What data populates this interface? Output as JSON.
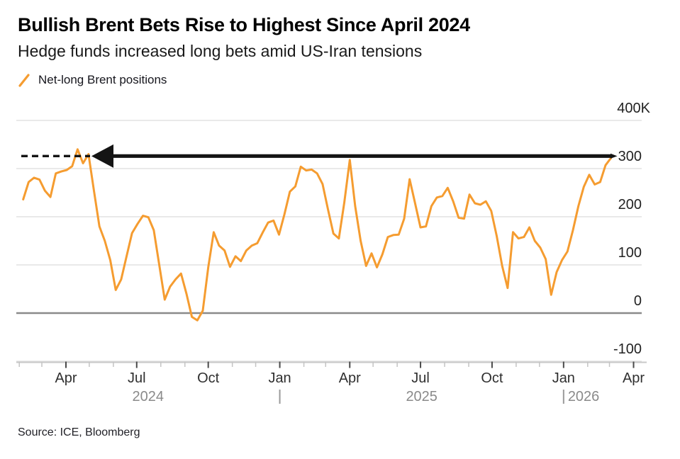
{
  "header": {
    "title": "Bullish Brent Bets Rise to Highest Since April 2024",
    "subtitle": "Hedge funds increased long bets amid US-Iran tensions"
  },
  "legend": {
    "label": "Net-long Brent positions",
    "swatch_color": "#F59C30",
    "swatch_icon": "orange-slash-icon"
  },
  "footer": {
    "source": "Source: ICE, Bloomberg"
  },
  "colors": {
    "accent_orange": "#F59C30",
    "gridline": "#E2E2E2",
    "zero_line": "#8A8A8A",
    "axis_line": "#C9C9C9",
    "tick_major": "#4A4A4A",
    "tick_minor": "#C4C4C4",
    "axis_text": "#222222",
    "month_text": "#2F2F2F",
    "year_text": "#8A8A8A",
    "year_bar": "#9A9A9A",
    "annotation": "#141414"
  },
  "chart_data": {
    "type": "line",
    "title": "Bullish Brent Bets Rise to Highest Since April 2024",
    "subtitle": "Hedge funds increased long bets amid US-Iran tensions",
    "legend_position": "top-left",
    "grid": true,
    "ylabel": "",
    "xlabel": "",
    "ylim": [
      -145,
      425
    ],
    "y_unit_suffix": "K",
    "y_axis": {
      "ticks": [
        {
          "value": 400,
          "label": "400K"
        },
        {
          "value": 300,
          "label": "300"
        },
        {
          "value": 200,
          "label": "200"
        },
        {
          "value": 100,
          "label": "100"
        },
        {
          "value": 0,
          "label": "0"
        },
        {
          "value": -100,
          "label": "-100"
        }
      ]
    },
    "x_axis": {
      "range": [
        "2024-02-03",
        "2026-04-01"
      ],
      "month_tick_labels": {
        "1": "Jan",
        "4": "Apr",
        "7": "Jul",
        "10": "Oct"
      },
      "years": [
        "2024",
        "2025",
        "2026"
      ]
    },
    "annotation": {
      "type": "left-arrow-with-dashed-tail",
      "level": 326,
      "meaning": "latest reading equals April 2024 peak level"
    },
    "series": [
      {
        "name": "Net-long Brent positions",
        "color": "#F59C30",
        "points": [
          [
            "2024-02-06",
            236
          ],
          [
            "2024-02-13",
            272
          ],
          [
            "2024-02-20",
            281
          ],
          [
            "2024-02-27",
            277
          ],
          [
            "2024-03-05",
            254
          ],
          [
            "2024-03-12",
            241
          ],
          [
            "2024-03-19",
            290
          ],
          [
            "2024-03-26",
            294
          ],
          [
            "2024-04-02",
            297
          ],
          [
            "2024-04-09",
            305
          ],
          [
            "2024-04-16",
            340
          ],
          [
            "2024-04-23",
            311
          ],
          [
            "2024-04-30",
            330
          ],
          [
            "2024-05-07",
            254
          ],
          [
            "2024-05-14",
            180
          ],
          [
            "2024-05-21",
            150
          ],
          [
            "2024-05-28",
            110
          ],
          [
            "2024-06-04",
            48
          ],
          [
            "2024-06-11",
            70
          ],
          [
            "2024-06-18",
            118
          ],
          [
            "2024-06-25",
            166
          ],
          [
            "2024-07-02",
            185
          ],
          [
            "2024-07-09",
            202
          ],
          [
            "2024-07-16",
            199
          ],
          [
            "2024-07-23",
            172
          ],
          [
            "2024-07-30",
            100
          ],
          [
            "2024-08-06",
            28
          ],
          [
            "2024-08-13",
            55
          ],
          [
            "2024-08-20",
            70
          ],
          [
            "2024-08-27",
            82
          ],
          [
            "2024-09-03",
            40
          ],
          [
            "2024-09-10",
            -8
          ],
          [
            "2024-09-17",
            -15
          ],
          [
            "2024-09-24",
            5
          ],
          [
            "2024-10-01",
            95
          ],
          [
            "2024-10-08",
            168
          ],
          [
            "2024-10-15",
            140
          ],
          [
            "2024-10-22",
            130
          ],
          [
            "2024-10-29",
            96
          ],
          [
            "2024-11-05",
            118
          ],
          [
            "2024-11-12",
            108
          ],
          [
            "2024-11-19",
            130
          ],
          [
            "2024-11-26",
            140
          ],
          [
            "2024-12-03",
            145
          ],
          [
            "2024-12-10",
            167
          ],
          [
            "2024-12-17",
            188
          ],
          [
            "2024-12-24",
            192
          ],
          [
            "2024-12-31",
            163
          ],
          [
            "2025-01-07",
            205
          ],
          [
            "2025-01-14",
            252
          ],
          [
            "2025-01-21",
            263
          ],
          [
            "2025-01-28",
            304
          ],
          [
            "2025-02-04",
            296
          ],
          [
            "2025-02-11",
            298
          ],
          [
            "2025-02-18",
            290
          ],
          [
            "2025-02-25",
            268
          ],
          [
            "2025-03-04",
            215
          ],
          [
            "2025-03-11",
            165
          ],
          [
            "2025-03-18",
            155
          ],
          [
            "2025-03-25",
            230
          ],
          [
            "2025-04-01",
            318
          ],
          [
            "2025-04-08",
            222
          ],
          [
            "2025-04-15",
            150
          ],
          [
            "2025-04-22",
            98
          ],
          [
            "2025-04-29",
            124
          ],
          [
            "2025-05-06",
            95
          ],
          [
            "2025-05-13",
            122
          ],
          [
            "2025-05-20",
            158
          ],
          [
            "2025-05-27",
            162
          ],
          [
            "2025-06-03",
            163
          ],
          [
            "2025-06-10",
            196
          ],
          [
            "2025-06-17",
            278
          ],
          [
            "2025-06-24",
            228
          ],
          [
            "2025-07-01",
            178
          ],
          [
            "2025-07-08",
            180
          ],
          [
            "2025-07-15",
            222
          ],
          [
            "2025-07-22",
            240
          ],
          [
            "2025-07-29",
            243
          ],
          [
            "2025-08-05",
            260
          ],
          [
            "2025-08-12",
            232
          ],
          [
            "2025-08-19",
            198
          ],
          [
            "2025-08-26",
            196
          ],
          [
            "2025-09-02",
            246
          ],
          [
            "2025-09-09",
            228
          ],
          [
            "2025-09-16",
            225
          ],
          [
            "2025-09-23",
            232
          ],
          [
            "2025-09-30",
            212
          ],
          [
            "2025-10-07",
            160
          ],
          [
            "2025-10-14",
            98
          ],
          [
            "2025-10-21",
            52
          ],
          [
            "2025-10-28",
            168
          ],
          [
            "2025-11-04",
            155
          ],
          [
            "2025-11-11",
            158
          ],
          [
            "2025-11-18",
            178
          ],
          [
            "2025-11-25",
            150
          ],
          [
            "2025-12-02",
            136
          ],
          [
            "2025-12-09",
            112
          ],
          [
            "2025-12-16",
            38
          ],
          [
            "2025-12-23",
            85
          ],
          [
            "2025-12-30",
            110
          ],
          [
            "2026-01-06",
            128
          ],
          [
            "2026-01-13",
            172
          ],
          [
            "2026-01-20",
            222
          ],
          [
            "2026-01-27",
            262
          ],
          [
            "2026-02-03",
            287
          ],
          [
            "2026-02-10",
            267
          ],
          [
            "2026-02-17",
            272
          ],
          [
            "2026-02-24",
            307
          ],
          [
            "2026-03-03",
            322
          ]
        ]
      }
    ]
  }
}
